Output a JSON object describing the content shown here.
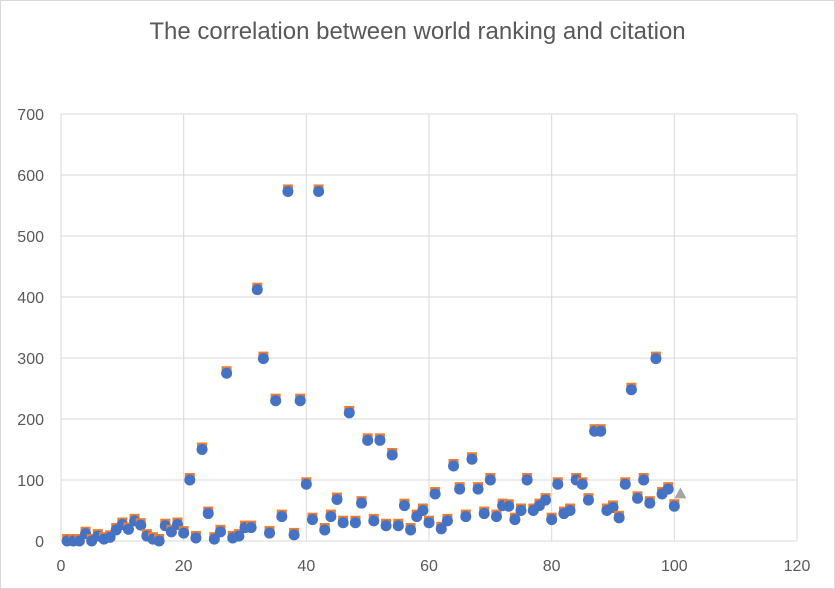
{
  "chart_data": {
    "type": "scatter",
    "title": "The correlation between world ranking and citation",
    "xlabel": "",
    "ylabel": "",
    "xlim": [
      0,
      120
    ],
    "ylim": [
      0,
      700
    ],
    "xticks": [
      0,
      20,
      40,
      60,
      80,
      100,
      120
    ],
    "yticks": [
      0,
      100,
      200,
      300,
      400,
      500,
      600,
      700
    ],
    "grid": true,
    "legend": "none",
    "colors": {
      "points": "#4472c4",
      "shadow": "#ed7d31",
      "marker_triangle": "#a5a5a5",
      "grid": "#d9d9d9",
      "axis_text": "#595959"
    },
    "triangle_point": {
      "x": 101,
      "y": 78
    },
    "points": [
      {
        "x": 1,
        "y": 0
      },
      {
        "x": 2,
        "y": 0
      },
      {
        "x": 3,
        "y": 0
      },
      {
        "x": 4,
        "y": 12
      },
      {
        "x": 5,
        "y": 0
      },
      {
        "x": 6,
        "y": 8
      },
      {
        "x": 7,
        "y": 3
      },
      {
        "x": 8,
        "y": 6
      },
      {
        "x": 9,
        "y": 18
      },
      {
        "x": 10,
        "y": 27
      },
      {
        "x": 11,
        "y": 19
      },
      {
        "x": 12,
        "y": 33
      },
      {
        "x": 13,
        "y": 26
      },
      {
        "x": 14,
        "y": 8
      },
      {
        "x": 15,
        "y": 3
      },
      {
        "x": 16,
        "y": 0
      },
      {
        "x": 17,
        "y": 25
      },
      {
        "x": 18,
        "y": 15
      },
      {
        "x": 19,
        "y": 27
      },
      {
        "x": 20,
        "y": 13
      },
      {
        "x": 21,
        "y": 100
      },
      {
        "x": 22,
        "y": 5
      },
      {
        "x": 23,
        "y": 150
      },
      {
        "x": 24,
        "y": 45
      },
      {
        "x": 25,
        "y": 3
      },
      {
        "x": 26,
        "y": 15
      },
      {
        "x": 27,
        "y": 275
      },
      {
        "x": 28,
        "y": 5
      },
      {
        "x": 29,
        "y": 8
      },
      {
        "x": 30,
        "y": 22
      },
      {
        "x": 31,
        "y": 22
      },
      {
        "x": 32,
        "y": 412
      },
      {
        "x": 33,
        "y": 299
      },
      {
        "x": 34,
        "y": 13
      },
      {
        "x": 35,
        "y": 230
      },
      {
        "x": 36,
        "y": 40
      },
      {
        "x": 37,
        "y": 573
      },
      {
        "x": 38,
        "y": 10
      },
      {
        "x": 39,
        "y": 230
      },
      {
        "x": 40,
        "y": 93
      },
      {
        "x": 41,
        "y": 35
      },
      {
        "x": 42,
        "y": 573
      },
      {
        "x": 43,
        "y": 18
      },
      {
        "x": 44,
        "y": 40
      },
      {
        "x": 45,
        "y": 68
      },
      {
        "x": 46,
        "y": 30
      },
      {
        "x": 47,
        "y": 210
      },
      {
        "x": 48,
        "y": 30
      },
      {
        "x": 49,
        "y": 62
      },
      {
        "x": 50,
        "y": 165
      },
      {
        "x": 51,
        "y": 33
      },
      {
        "x": 52,
        "y": 165
      },
      {
        "x": 53,
        "y": 25
      },
      {
        "x": 54,
        "y": 141
      },
      {
        "x": 55,
        "y": 25
      },
      {
        "x": 56,
        "y": 58
      },
      {
        "x": 57,
        "y": 18
      },
      {
        "x": 58,
        "y": 40
      },
      {
        "x": 59,
        "y": 50
      },
      {
        "x": 60,
        "y": 30
      },
      {
        "x": 61,
        "y": 77
      },
      {
        "x": 62,
        "y": 20
      },
      {
        "x": 63,
        "y": 33
      },
      {
        "x": 64,
        "y": 123
      },
      {
        "x": 65,
        "y": 85
      },
      {
        "x": 66,
        "y": 40
      },
      {
        "x": 67,
        "y": 134
      },
      {
        "x": 68,
        "y": 85
      },
      {
        "x": 69,
        "y": 45
      },
      {
        "x": 70,
        "y": 100
      },
      {
        "x": 71,
        "y": 40
      },
      {
        "x": 72,
        "y": 58
      },
      {
        "x": 73,
        "y": 57
      },
      {
        "x": 74,
        "y": 35
      },
      {
        "x": 75,
        "y": 50
      },
      {
        "x": 76,
        "y": 100
      },
      {
        "x": 77,
        "y": 50
      },
      {
        "x": 78,
        "y": 58
      },
      {
        "x": 79,
        "y": 67
      },
      {
        "x": 80,
        "y": 35
      },
      {
        "x": 81,
        "y": 93
      },
      {
        "x": 82,
        "y": 45
      },
      {
        "x": 83,
        "y": 50
      },
      {
        "x": 84,
        "y": 100
      },
      {
        "x": 85,
        "y": 93
      },
      {
        "x": 86,
        "y": 67
      },
      {
        "x": 87,
        "y": 180
      },
      {
        "x": 88,
        "y": 180
      },
      {
        "x": 89,
        "y": 50
      },
      {
        "x": 90,
        "y": 55
      },
      {
        "x": 91,
        "y": 38
      },
      {
        "x": 92,
        "y": 93
      },
      {
        "x": 93,
        "y": 248
      },
      {
        "x": 94,
        "y": 70
      },
      {
        "x": 95,
        "y": 100
      },
      {
        "x": 96,
        "y": 62
      },
      {
        "x": 97,
        "y": 299
      },
      {
        "x": 98,
        "y": 77
      },
      {
        "x": 99,
        "y": 85
      },
      {
        "x": 100,
        "y": 57
      }
    ]
  }
}
